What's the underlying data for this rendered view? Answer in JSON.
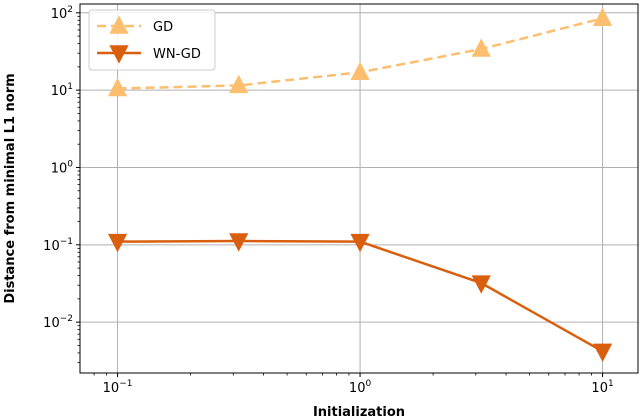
{
  "chart_data": {
    "type": "line",
    "xlabel": "Initialization",
    "ylabel": "Distance from minimal L1 norm",
    "xscale": "log",
    "yscale": "log",
    "xlim": [
      0.07,
      14
    ],
    "ylim": [
      0.0022,
      130
    ],
    "grid": true,
    "legend_position": "top-left",
    "x_ticks": [
      {
        "value": 0.1,
        "base": "10",
        "exp": "−1"
      },
      {
        "value": 1,
        "base": "10",
        "exp": "0"
      },
      {
        "value": 10,
        "base": "10",
        "exp": "1"
      }
    ],
    "y_ticks": [
      {
        "value": 0.01,
        "base": "10",
        "exp": "−2"
      },
      {
        "value": 0.1,
        "base": "10",
        "exp": "−1"
      },
      {
        "value": 1,
        "base": "10",
        "exp": "0"
      },
      {
        "value": 10,
        "base": "10",
        "exp": "1"
      },
      {
        "value": 100,
        "base": "10",
        "exp": "2"
      }
    ],
    "x": [
      0.1,
      0.316,
      1,
      3.16,
      10
    ],
    "series": [
      {
        "name": "GD",
        "values": [
          10.5,
          11.5,
          17,
          34,
          85
        ],
        "color": "#fdbf6f",
        "marker": "triangle-up",
        "linestyle": "dashed"
      },
      {
        "name": "WN-GD",
        "values": [
          0.11,
          0.112,
          0.11,
          0.032,
          0.0042
        ],
        "color": "#d95f0e",
        "marker": "triangle-down",
        "linestyle": "solid"
      }
    ]
  }
}
